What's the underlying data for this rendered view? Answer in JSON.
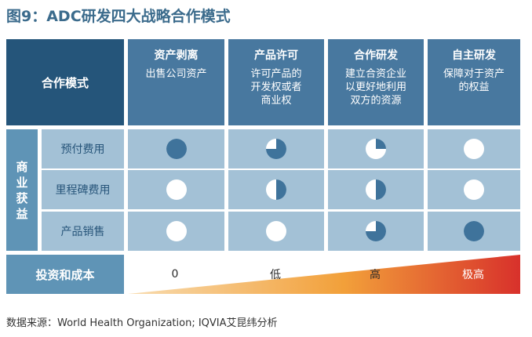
{
  "title": "图9：ADC研发四大战略合作模式",
  "header_left": "合作模式",
  "columns": [
    {
      "heading": "资产剥离",
      "desc_lines": [
        "出售公司资产"
      ]
    },
    {
      "heading": "产品许可",
      "desc_lines": [
        "许可产品的",
        "开发权或者",
        "商业权"
      ]
    },
    {
      "heading": "合作研发",
      "desc_lines": [
        "建立合资企业",
        "以更好地利用",
        "双方的资源"
      ]
    },
    {
      "heading": "自主研发",
      "desc_lines": [
        "保障对于资产",
        "的权益"
      ]
    }
  ],
  "side_label_chars": [
    "商",
    "业",
    "获",
    "益"
  ],
  "rows": [
    {
      "label": "预付费用",
      "levels": [
        1.0,
        0.75,
        0.25,
        0.0
      ]
    },
    {
      "label": "里程碑费用",
      "levels": [
        0.0,
        0.5,
        0.5,
        0.0
      ]
    },
    {
      "label": "产品销售",
      "levels": [
        0.0,
        0.0,
        0.75,
        1.0
      ]
    }
  ],
  "cost_label": "投资和成本",
  "cost_values": [
    "0",
    "低",
    "高",
    "极高"
  ],
  "colors": {
    "header_dark": "#25557a",
    "header_mid": "#48789f",
    "side": "#5f94b6",
    "cell": "#a3c1d6",
    "fill": "#3f739b",
    "title": "#3b6b8c",
    "cost_light": "#f8dcb0",
    "cost_mid": "#f2a03a",
    "cost_dark": "#d8312b"
  },
  "source": "数据来源：World Health Organization; IQVIA艾昆纬分析"
}
